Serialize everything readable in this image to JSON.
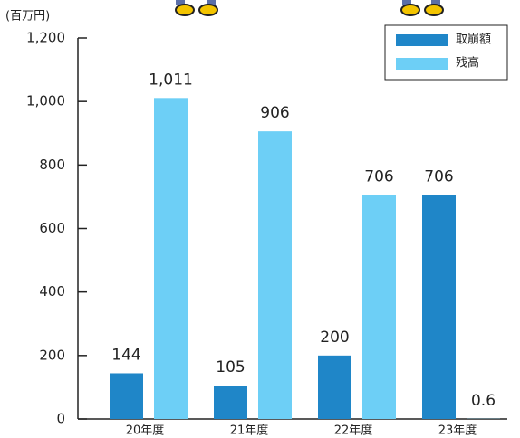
{
  "chart_data": {
    "type": "bar",
    "y_label": "(百万円)",
    "categories": [
      "20年度",
      "21年度",
      "22年度",
      "23年度"
    ],
    "series": [
      {
        "name": "取崩額",
        "color": "#1f86c8",
        "values": [
          144,
          105,
          200,
          706
        ]
      },
      {
        "name": "残高",
        "color": "#6dcff6",
        "values": [
          1011,
          906,
          706,
          0.6
        ],
        "value_labels": [
          "1,011",
          "906",
          "706",
          "0.6"
        ]
      }
    ],
    "ylim": [
      0,
      1200
    ],
    "yticks": [
      0,
      200,
      400,
      600,
      800,
      {
        "value": 1000,
        "label": "1,000"
      },
      {
        "value": 1200,
        "label": "1,200"
      }
    ],
    "legend": "upper right"
  }
}
